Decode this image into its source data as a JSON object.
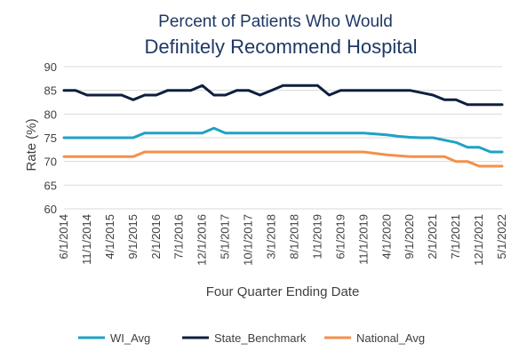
{
  "chart_data": {
    "type": "line",
    "title_line1": "Percent of Patients Who Would",
    "title_line2": "Definitely Recommend Hospital",
    "xlabel": "Four Quarter Ending Date",
    "ylabel": "Rate (%)",
    "ylim": [
      60,
      90
    ],
    "yticks": [
      60,
      65,
      70,
      75,
      80,
      85,
      90
    ],
    "grid": true,
    "legend_position": "bottom",
    "x": [
      "6/1/2014",
      "9/1/2014",
      "11/1/2014",
      "2/1/2015",
      "4/1/2015",
      "6/1/2015",
      "9/1/2015",
      "11/1/2015",
      "2/1/2016",
      "4/1/2016",
      "7/1/2016",
      "10/1/2016",
      "12/1/2016",
      "3/1/2017",
      "5/1/2017",
      "8/1/2017",
      "10/1/2017",
      "1/1/2018",
      "3/1/2018",
      "6/1/2018",
      "8/1/2018",
      "11/1/2018",
      "1/1/2019",
      "4/1/2019",
      "6/1/2019",
      "9/1/2019",
      "11/1/2019",
      "2/1/2020",
      "4/1/2020",
      "7/1/2020",
      "9/1/2020",
      "12/1/2020",
      "2/1/2021",
      "5/1/2021",
      "7/1/2021",
      "10/1/2021",
      "12/1/2021",
      "3/1/2022",
      "5/1/2022"
    ],
    "xtick_labels": [
      "6/1/2014",
      "11/1/2014",
      "4/1/2015",
      "9/1/2015",
      "2/1/2016",
      "7/1/2016",
      "12/1/2016",
      "5/1/2017",
      "10/1/2017",
      "3/1/2018",
      "8/1/2018",
      "1/1/2019",
      "6/1/2019",
      "11/1/2019",
      "4/1/2020",
      "9/1/2020",
      "2/1/2021",
      "7/1/2021",
      "12/1/2021",
      "5/1/2022"
    ],
    "series": [
      {
        "name": "WI_Avg",
        "color": "#1fa2c4",
        "values": [
          75,
          75,
          75,
          75,
          75,
          75,
          75,
          76,
          76,
          76,
          76,
          76,
          76,
          77,
          76,
          76,
          76,
          76,
          76,
          76,
          76,
          76,
          76,
          76,
          76,
          76,
          76,
          75.8,
          75.6,
          75.3,
          75.1,
          75,
          75,
          74.5,
          74,
          73,
          73,
          72,
          72
        ]
      },
      {
        "name": "State_Benchmark",
        "color": "#0e1f3f",
        "values": [
          85,
          85,
          84,
          84,
          84,
          84,
          83,
          84,
          84,
          85,
          85,
          85,
          86,
          84,
          84,
          85,
          85,
          84,
          85,
          86,
          86,
          86,
          86,
          84,
          85,
          85,
          85,
          85,
          85,
          85,
          85,
          84.5,
          84,
          83,
          83,
          82,
          82,
          82,
          82
        ]
      },
      {
        "name": "National_Avg",
        "color": "#f4904a",
        "values": [
          71,
          71,
          71,
          71,
          71,
          71,
          71,
          72,
          72,
          72,
          72,
          72,
          72,
          72,
          72,
          72,
          72,
          72,
          72,
          72,
          72,
          72,
          72,
          72,
          72,
          72,
          72,
          71.7,
          71.4,
          71.2,
          71,
          71,
          71,
          71,
          70,
          70,
          69,
          69,
          69
        ]
      }
    ]
  }
}
